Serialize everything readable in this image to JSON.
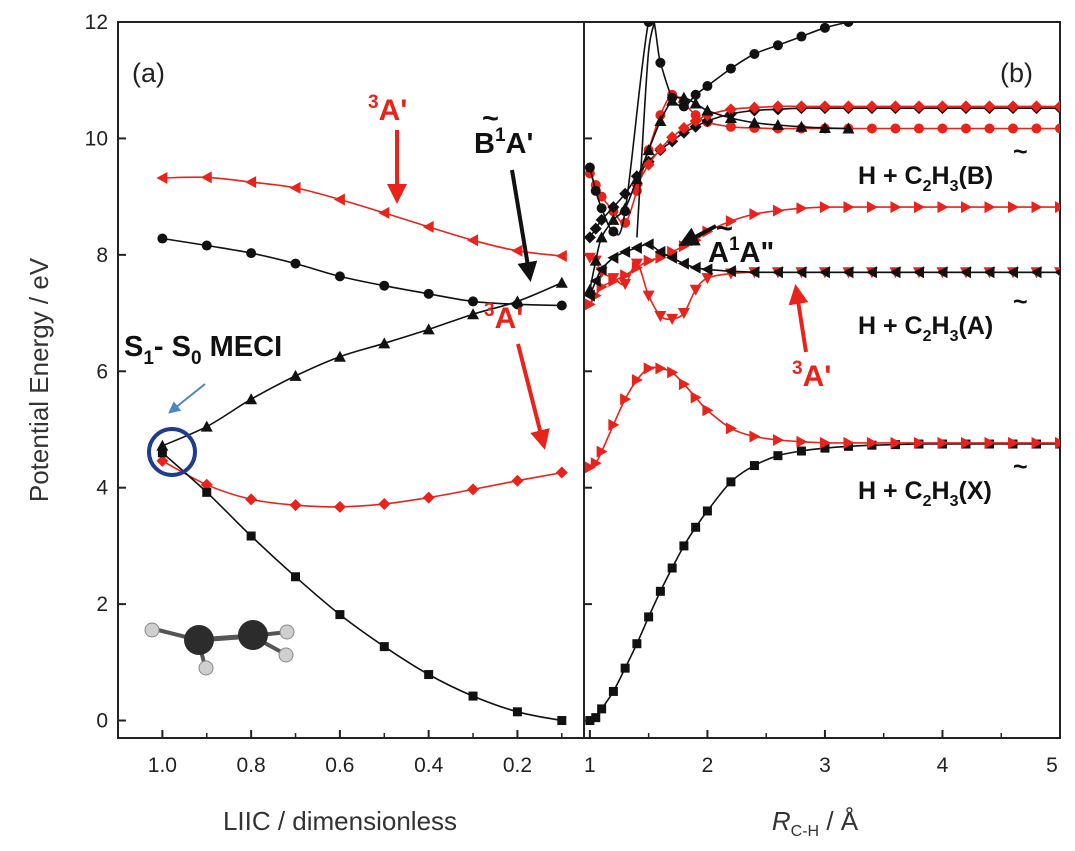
{
  "colors": {
    "red": "#e8231b",
    "black": "#111111",
    "circle": "#1f3d8c",
    "blue_arrow": "#4a86c8"
  },
  "yaxis": {
    "title": "Potential Energy / eV",
    "ticks": [
      0,
      2,
      4,
      6,
      8,
      10,
      12
    ],
    "ylim": [
      -0.3,
      12
    ]
  },
  "panel_a": {
    "tag": "(a)",
    "xlabel": "LIIC / dimensionless",
    "xticks": [
      "1.0",
      "0.8",
      "0.6",
      "0.4",
      "0.2"
    ],
    "xlim": [
      1.1,
      0.05
    ],
    "x_reversed": true,
    "annotations": {
      "triplet_top": {
        "sup": "3",
        "text": "A'"
      },
      "triplet_bottom": {
        "sup": "3",
        "text": "A'"
      },
      "b_state": {
        "tilde_letter": "B",
        "sup": "1",
        "text": "A'"
      },
      "meci": {
        "s1": "S",
        "sub1": "1",
        "dash": "- S",
        "sub0": "0",
        "rest": " MECI"
      }
    }
  },
  "panel_b": {
    "tag": "(b)",
    "xlabel": {
      "italic": "R",
      "sub": "C-H",
      "rest": " / Å"
    },
    "xticks": [
      "1",
      "2",
      "3",
      "4",
      "5"
    ],
    "xlim": [
      0.95,
      5.0
    ],
    "annotations": {
      "a_state": {
        "tilde_letter": "A",
        "sup": "1",
        "text": "A\""
      },
      "triplet": {
        "sup": "3",
        "text": "A'"
      },
      "asymptote_b": {
        "prefix": "H + C",
        "sub": "2",
        "mid": "H",
        "sub2": "3",
        "paren_open": "(",
        "letter": "B",
        "paren_close": ")"
      },
      "asymptote_a": {
        "prefix": "H + C",
        "sub": "2",
        "mid": "H",
        "sub2": "3",
        "paren_open": "(",
        "letter": "A",
        "paren_close": ")"
      },
      "asymptote_x": {
        "prefix": "H + C",
        "sub": "2",
        "mid": "H",
        "sub2": "3",
        "paren_open": "(",
        "letter": "X",
        "paren_close": ")"
      }
    }
  },
  "chart_data": [
    {
      "type": "line",
      "panel": "a",
      "xlabel": "LIIC / dimensionless",
      "ylabel": "Potential Energy / eV",
      "xlim": [
        1.1,
        0.05
      ],
      "ylim": [
        -0.3,
        12
      ],
      "series": [
        {
          "color": "#e8231b",
          "marker": "triangle-left",
          "x": [
            1.0,
            0.9,
            0.8,
            0.7,
            0.6,
            0.5,
            0.4,
            0.3,
            0.2,
            0.1
          ],
          "y": [
            9.32,
            9.33,
            9.25,
            9.15,
            8.95,
            8.72,
            8.48,
            8.25,
            8.07,
            7.98
          ]
        },
        {
          "color": "#111111",
          "marker": "circle",
          "x": [
            1.0,
            0.9,
            0.8,
            0.7,
            0.6,
            0.5,
            0.4,
            0.3,
            0.2,
            0.1
          ],
          "y": [
            8.28,
            8.16,
            8.03,
            7.85,
            7.63,
            7.47,
            7.33,
            7.2,
            7.15,
            7.13
          ]
        },
        {
          "color": "#111111",
          "marker": "triangle-up",
          "x": [
            1.0,
            0.9,
            0.8,
            0.7,
            0.6,
            0.5,
            0.4,
            0.3,
            0.2,
            0.1
          ],
          "y": [
            4.72,
            5.05,
            5.52,
            5.92,
            6.25,
            6.48,
            6.72,
            6.98,
            7.2,
            7.52
          ]
        },
        {
          "color": "#e8231b",
          "marker": "diamond",
          "x": [
            1.0,
            0.9,
            0.8,
            0.7,
            0.6,
            0.5,
            0.4,
            0.3,
            0.2,
            0.1
          ],
          "y": [
            4.46,
            4.05,
            3.8,
            3.7,
            3.67,
            3.72,
            3.83,
            3.97,
            4.12,
            4.26
          ]
        },
        {
          "color": "#111111",
          "marker": "square",
          "x": [
            1.0,
            0.9,
            0.8,
            0.7,
            0.6,
            0.5,
            0.4,
            0.3,
            0.2,
            0.1
          ],
          "y": [
            4.6,
            3.92,
            3.17,
            2.47,
            1.82,
            1.27,
            0.79,
            0.42,
            0.15,
            0.0
          ]
        }
      ]
    },
    {
      "type": "line",
      "panel": "b",
      "xlabel": "R C-H / Å",
      "ylabel": "Potential Energy / eV",
      "xlim": [
        0.95,
        5.0
      ],
      "ylim": [
        -0.3,
        12
      ],
      "series": [
        {
          "color": "#111111",
          "marker": "square",
          "x": [
            1.0,
            1.05,
            1.1,
            1.2,
            1.3,
            1.4,
            1.5,
            1.6,
            1.7,
            1.8,
            1.9,
            2.0,
            2.2,
            2.4,
            2.6,
            2.8,
            3.0,
            3.2,
            3.4,
            3.6,
            3.8,
            4.0,
            4.2,
            4.4,
            4.6,
            4.8,
            5.0
          ],
          "y": [
            0.0,
            0.05,
            0.2,
            0.5,
            0.9,
            1.32,
            1.78,
            2.22,
            2.62,
            3.0,
            3.32,
            3.6,
            4.1,
            4.38,
            4.55,
            4.63,
            4.68,
            4.71,
            4.73,
            4.74,
            4.75,
            4.75,
            4.75,
            4.75,
            4.75,
            4.75,
            4.75
          ]
        },
        {
          "color": "#e8231b",
          "marker": "triangle-right",
          "x": [
            1.0,
            1.05,
            1.1,
            1.2,
            1.3,
            1.4,
            1.5,
            1.6,
            1.7,
            1.8,
            1.9,
            2.0,
            2.2,
            2.4,
            2.6,
            2.8,
            3.0,
            3.2,
            3.4,
            3.6,
            3.8,
            4.0,
            4.2,
            4.4,
            4.6,
            4.8,
            5.0
          ],
          "y": [
            4.35,
            4.42,
            4.62,
            5.08,
            5.52,
            5.85,
            6.05,
            6.05,
            5.98,
            5.78,
            5.55,
            5.33,
            5.02,
            4.88,
            4.82,
            4.79,
            4.77,
            4.77,
            4.77,
            4.77,
            4.77,
            4.77,
            4.77,
            4.77,
            4.77,
            4.77,
            4.77
          ]
        },
        {
          "color": "#e8231b",
          "marker": "triangle-right",
          "x": [
            1.0,
            1.05,
            1.1,
            1.2,
            1.3,
            1.4,
            1.5,
            1.6,
            1.7,
            1.8,
            1.9,
            2.0,
            2.2,
            2.4,
            2.6,
            2.8,
            3.0,
            3.2,
            3.4,
            3.6,
            3.8,
            4.0,
            4.2,
            4.4,
            4.6,
            4.8,
            5.0
          ],
          "y": [
            7.15,
            7.3,
            7.45,
            7.55,
            7.65,
            7.78,
            7.9,
            7.95,
            8.05,
            8.15,
            8.25,
            8.4,
            8.58,
            8.7,
            8.76,
            8.8,
            8.82,
            8.82,
            8.82,
            8.82,
            8.82,
            8.82,
            8.82,
            8.82,
            8.82,
            8.82,
            8.82
          ]
        },
        {
          "color": "#e8231b",
          "marker": "triangle-down",
          "x": [
            1.0,
            1.05,
            1.1,
            1.2,
            1.3,
            1.4,
            1.5,
            1.6,
            1.7,
            1.8,
            1.9,
            2.0,
            2.2,
            2.4,
            2.6,
            2.8,
            3.0,
            3.2,
            3.4,
            3.6,
            3.8,
            4.0,
            4.2,
            4.4,
            4.6,
            4.8,
            5.0
          ],
          "y": [
            7.95,
            7.9,
            7.7,
            7.6,
            7.5,
            7.85,
            7.3,
            6.95,
            6.9,
            7.0,
            7.4,
            7.6,
            7.68,
            7.7,
            7.7,
            7.7,
            7.7,
            7.7,
            7.7,
            7.7,
            7.7,
            7.7,
            7.7,
            7.7,
            7.7,
            7.7,
            7.7
          ]
        },
        {
          "color": "#111111",
          "marker": "triangle-left",
          "x": [
            1.0,
            1.05,
            1.1,
            1.2,
            1.3,
            1.4,
            1.5,
            1.6,
            1.7,
            1.8,
            1.9,
            2.0,
            2.2,
            2.4,
            2.6,
            2.8,
            3.0,
            3.2,
            3.4,
            3.6,
            3.8,
            4.0,
            4.2,
            4.4,
            4.6,
            4.8,
            5.0
          ],
          "y": [
            7.3,
            7.55,
            7.75,
            7.95,
            8.05,
            8.12,
            8.18,
            8.05,
            7.95,
            7.85,
            7.78,
            7.75,
            7.72,
            7.7,
            7.7,
            7.7,
            7.7,
            7.7,
            7.7,
            7.7,
            7.7,
            7.7,
            7.7,
            7.7,
            7.7,
            7.7,
            7.7
          ]
        },
        {
          "color": "#e8231b",
          "marker": "circle",
          "x": [
            1.0,
            1.05,
            1.1,
            1.2,
            1.3,
            1.4,
            1.5,
            1.6,
            1.7,
            1.8,
            1.9,
            2.0,
            2.2,
            2.4,
            2.6,
            2.8,
            3.0,
            3.2,
            3.4,
            3.6,
            3.8,
            4.0,
            4.2,
            4.4,
            4.6,
            4.8,
            5.0
          ],
          "y": [
            9.4,
            9.2,
            9.0,
            8.75,
            8.55,
            9.1,
            9.8,
            10.4,
            10.75,
            10.6,
            10.4,
            10.28,
            10.2,
            10.18,
            10.17,
            10.17,
            10.17,
            10.17,
            10.17,
            10.17,
            10.17,
            10.17,
            10.17,
            10.17,
            10.17,
            10.17,
            10.17
          ]
        },
        {
          "color": "#111111",
          "marker": "diamond",
          "x": [
            1.0,
            1.05,
            1.1,
            1.2,
            1.3,
            1.4,
            1.5,
            1.6,
            1.7,
            1.8,
            1.9,
            2.0,
            2.2,
            2.4,
            2.6,
            2.8,
            3.0,
            3.2,
            3.4,
            3.6,
            3.8,
            4.0,
            4.2,
            4.4,
            4.6,
            4.8,
            5.0
          ],
          "y": [
            8.3,
            8.45,
            8.6,
            8.82,
            9.05,
            9.35,
            9.6,
            9.8,
            9.95,
            10.1,
            10.2,
            10.3,
            10.42,
            10.48,
            10.5,
            10.52,
            10.52,
            10.52,
            10.52,
            10.52,
            10.52,
            10.52,
            10.52,
            10.52,
            10.52,
            10.52,
            10.52
          ]
        },
        {
          "color": "#e8231b",
          "marker": "diamond",
          "x": [
            1.4,
            1.5,
            1.6,
            1.7,
            1.8,
            1.9,
            2.0,
            2.2,
            2.4,
            2.6,
            2.8,
            3.0,
            3.2,
            3.4,
            3.6,
            3.8,
            4.0,
            4.2,
            4.4,
            4.6,
            4.8,
            5.0
          ],
          "y": [
            9.2,
            9.55,
            9.82,
            10.02,
            10.18,
            10.3,
            10.4,
            10.5,
            10.53,
            10.55,
            10.55,
            10.55,
            10.55,
            10.55,
            10.55,
            10.55,
            10.55,
            10.55,
            10.55,
            10.55,
            10.55,
            10.55
          ]
        },
        {
          "color": "#111111",
          "marker": "triangle-up",
          "x": [
            1.0,
            1.05,
            1.1,
            1.2,
            1.3,
            1.4,
            1.5,
            1.6,
            1.7,
            1.8,
            1.9,
            2.0,
            2.2,
            2.4,
            2.6,
            2.8,
            3.0,
            3.2
          ],
          "y": [
            7.4,
            7.9,
            8.3,
            8.6,
            8.8,
            9.3,
            9.8,
            10.3,
            10.65,
            10.7,
            10.6,
            10.48,
            10.35,
            10.27,
            10.23,
            10.2,
            10.18,
            10.17
          ]
        },
        {
          "color": "#111111",
          "marker": "circle",
          "x": [
            1.0,
            1.05,
            1.1,
            1.2,
            1.3,
            1.5,
            1.6,
            1.7,
            1.8,
            1.9,
            2.0,
            2.2,
            2.4,
            2.6,
            2.8,
            3.0,
            3.2
          ],
          "y": [
            9.5,
            9.1,
            8.8,
            8.4,
            8.75,
            12.0,
            11.3,
            10.7,
            10.55,
            10.75,
            10.9,
            11.2,
            11.45,
            11.6,
            11.75,
            11.9,
            12.0
          ]
        },
        {
          "color": "#111111",
          "marker": "none",
          "x": [
            1.4,
            1.45,
            1.5,
            1.55
          ],
          "y": [
            8.3,
            10.0,
            11.5,
            12.0
          ]
        }
      ]
    }
  ]
}
